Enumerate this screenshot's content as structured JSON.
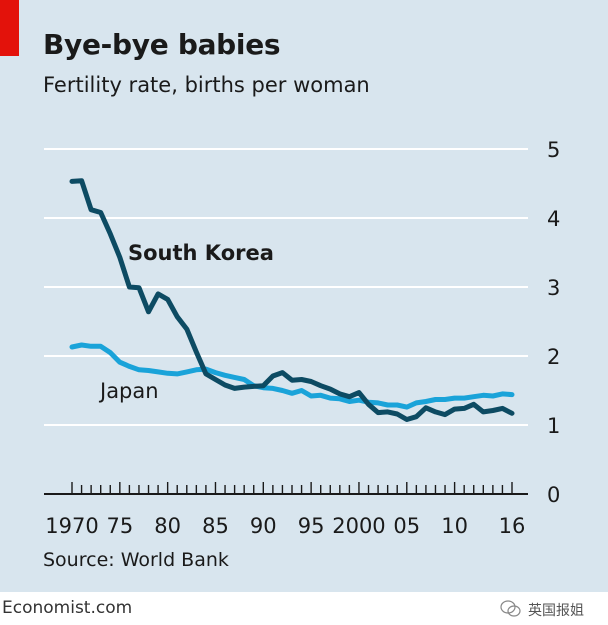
{
  "header": {
    "title": "Bye-bye babies",
    "subtitle": "Fertility rate, births per woman"
  },
  "footer": {
    "source": "Source: World Bank",
    "credit": "Economist.com",
    "watermark": "英国报姐"
  },
  "colors": {
    "background": "#d8e5ee",
    "accent_tag": "#e3120b",
    "south_korea": "#0d4b63",
    "japan": "#1aa3d9",
    "gridline": "#ffffff",
    "axis": "#1a1a1a"
  },
  "chart_data": {
    "type": "line",
    "title": "Bye-bye babies",
    "subtitle": "Fertility rate, births per woman",
    "ylim": [
      0,
      5
    ],
    "yticks": [
      0,
      1,
      2,
      3,
      4,
      5
    ],
    "ytick_labels": [
      "0",
      "1",
      "2",
      "3",
      "4",
      "5"
    ],
    "yaxis_side": "right",
    "xlim": [
      1970,
      2016
    ],
    "xticks": [
      1970,
      1975,
      1980,
      1985,
      1990,
      1995,
      2000,
      2005,
      2010,
      2016
    ],
    "xtick_labels": [
      "1970",
      "75",
      "80",
      "85",
      "90",
      "95",
      "2000",
      "05",
      "10",
      "16"
    ],
    "grid": true,
    "series": [
      {
        "name": "South Korea",
        "color": "#0d4b63",
        "x": [
          1970,
          1971,
          1972,
          1973,
          1974,
          1975,
          1976,
          1977,
          1978,
          1979,
          1980,
          1981,
          1982,
          1983,
          1984,
          1985,
          1986,
          1987,
          1988,
          1989,
          1990,
          1991,
          1992,
          1993,
          1994,
          1995,
          1996,
          1997,
          1998,
          1999,
          2000,
          2001,
          2002,
          2003,
          2004,
          2005,
          2006,
          2007,
          2008,
          2009,
          2010,
          2011,
          2012,
          2013,
          2014,
          2015,
          2016
        ],
        "values": [
          4.53,
          4.54,
          4.12,
          4.08,
          3.77,
          3.43,
          3.0,
          2.99,
          2.64,
          2.9,
          2.82,
          2.57,
          2.39,
          2.06,
          1.74,
          1.66,
          1.58,
          1.53,
          1.55,
          1.56,
          1.57,
          1.71,
          1.76,
          1.65,
          1.66,
          1.63,
          1.57,
          1.52,
          1.45,
          1.41,
          1.47,
          1.3,
          1.18,
          1.19,
          1.16,
          1.08,
          1.12,
          1.25,
          1.19,
          1.15,
          1.23,
          1.24,
          1.3,
          1.19,
          1.21,
          1.24,
          1.17
        ]
      },
      {
        "name": "Japan",
        "color": "#1aa3d9",
        "x": [
          1970,
          1971,
          1972,
          1973,
          1974,
          1975,
          1976,
          1977,
          1978,
          1979,
          1980,
          1981,
          1982,
          1983,
          1984,
          1985,
          1986,
          1987,
          1988,
          1989,
          1990,
          1991,
          1992,
          1993,
          1994,
          1995,
          1996,
          1997,
          1998,
          1999,
          2000,
          2001,
          2002,
          2003,
          2004,
          2005,
          2006,
          2007,
          2008,
          2009,
          2010,
          2011,
          2012,
          2013,
          2014,
          2015,
          2016
        ],
        "values": [
          2.13,
          2.16,
          2.14,
          2.14,
          2.05,
          1.91,
          1.85,
          1.8,
          1.79,
          1.77,
          1.75,
          1.74,
          1.77,
          1.8,
          1.81,
          1.76,
          1.72,
          1.69,
          1.66,
          1.57,
          1.54,
          1.53,
          1.5,
          1.46,
          1.5,
          1.42,
          1.43,
          1.39,
          1.38,
          1.34,
          1.36,
          1.33,
          1.32,
          1.29,
          1.29,
          1.26,
          1.32,
          1.34,
          1.37,
          1.37,
          1.39,
          1.39,
          1.41,
          1.43,
          1.42,
          1.45,
          1.44
        ]
      }
    ],
    "annotations": [
      {
        "series": "South Korea",
        "text": "South Korea"
      },
      {
        "series": "Japan",
        "text": "Japan"
      }
    ]
  }
}
